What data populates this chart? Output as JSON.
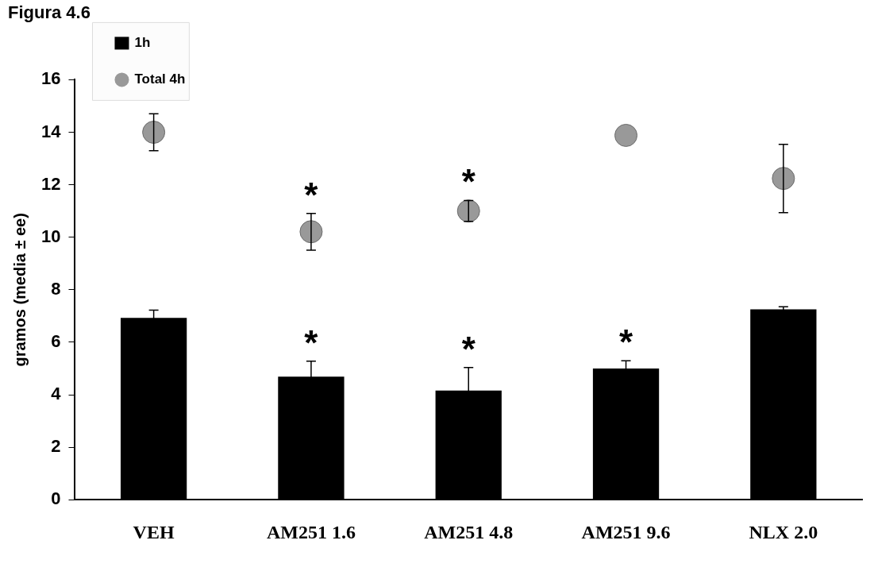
{
  "chart_data": {
    "type": "bar",
    "title": "Figura 4.6",
    "ylabel": "gramos (media ± ee)",
    "categories": [
      "VEH",
      "AM251 1.6",
      "AM251 4.8",
      "AM251 9.6",
      "NLX 2.0"
    ],
    "series": [
      {
        "name": "1h",
        "color": "#000000",
        "values": [
          6.93,
          4.69,
          4.16,
          5.0,
          7.25
        ],
        "errors": [
          0.29,
          0.59,
          0.88,
          0.29,
          0.1
        ],
        "value_labels": [
          null,
          "*",
          "*",
          "*",
          null
        ]
      },
      {
        "name": "Total 4h",
        "type": "scatter",
        "color": "#999999",
        "values": [
          14.0,
          10.21,
          11.0,
          13.88,
          12.24
        ],
        "errors": [
          0.7,
          0.7,
          0.4,
          null,
          1.3
        ],
        "value_labels": [
          null,
          "*",
          "*",
          null,
          null
        ]
      }
    ],
    "ylim": [
      0,
      16
    ],
    "yticks": [
      0,
      2,
      4,
      6,
      8,
      10,
      12,
      14,
      16
    ],
    "grid": false,
    "legend": "top left",
    "marker": "circle"
  }
}
